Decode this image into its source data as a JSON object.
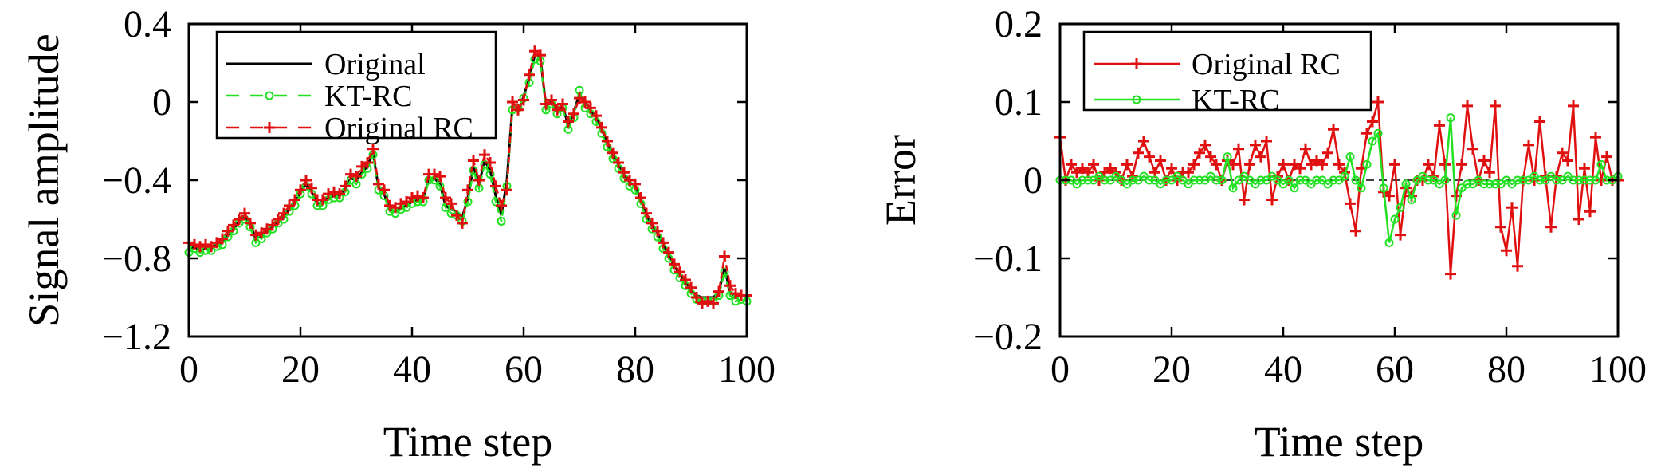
{
  "charts": [
    {
      "type": "line",
      "xlabel": "Time step",
      "ylabel": "Signal amplitude",
      "xlim": [
        0,
        100
      ],
      "ylim": [
        -1.2,
        0.4
      ],
      "xticks": [
        0,
        20,
        40,
        60,
        80,
        100
      ],
      "yticks": [
        0.4,
        0,
        -0.4,
        -0.8,
        -1.2
      ],
      "xtick_labels": [
        "0",
        "20",
        "40",
        "60",
        "80",
        "100"
      ],
      "ytick_labels": [
        "0.4",
        "0",
        "−0.4",
        "−0.8",
        "−1.2"
      ],
      "grid": false,
      "legend_position": "top-left",
      "series": [
        {
          "name": "Original",
          "color": "#000000",
          "style": "solid",
          "marker": "none",
          "values": [
            -0.75,
            -0.74,
            -0.76,
            -0.75,
            -0.75,
            -0.73,
            -0.72,
            -0.68,
            -0.65,
            -0.61,
            -0.59,
            -0.63,
            -0.7,
            -0.68,
            -0.66,
            -0.64,
            -0.61,
            -0.59,
            -0.55,
            -0.52,
            -0.46,
            -0.42,
            -0.46,
            -0.52,
            -0.51,
            -0.49,
            -0.48,
            -0.48,
            -0.45,
            -0.39,
            -0.4,
            -0.36,
            -0.33,
            -0.26,
            -0.44,
            -0.47,
            -0.55,
            -0.56,
            -0.54,
            -0.53,
            -0.51,
            -0.5,
            -0.5,
            -0.39,
            -0.39,
            -0.42,
            -0.53,
            -0.55,
            -0.56,
            -0.59,
            -0.49,
            -0.33,
            -0.42,
            -0.3,
            -0.35,
            -0.48,
            -0.58,
            -0.4,
            -0.02,
            -0.05,
            0.03,
            0.12,
            0.24,
            0.23,
            -0.02,
            0.0,
            -0.05,
            -0.02,
            -0.12,
            -0.05,
            0.04,
            0.0,
            -0.04,
            -0.08,
            -0.14,
            -0.21,
            -0.27,
            -0.32,
            -0.37,
            -0.41,
            -0.43,
            -0.5,
            -0.58,
            -0.63,
            -0.67,
            -0.73,
            -0.78,
            -0.84,
            -0.88,
            -0.92,
            -0.96,
            -0.99,
            -1.0,
            -1.0,
            -1.0,
            -0.97,
            -0.85,
            -0.97,
            -1.0,
            -0.99,
            -1.0
          ]
        },
        {
          "name": "KT-RC",
          "color": "#22e022",
          "style": "dashed",
          "marker": "circle",
          "values": [
            -0.77,
            -0.75,
            -0.77,
            -0.76,
            -0.76,
            -0.74,
            -0.73,
            -0.69,
            -0.66,
            -0.62,
            -0.6,
            -0.64,
            -0.72,
            -0.7,
            -0.67,
            -0.65,
            -0.62,
            -0.6,
            -0.56,
            -0.53,
            -0.47,
            -0.43,
            -0.47,
            -0.53,
            -0.53,
            -0.5,
            -0.49,
            -0.49,
            -0.46,
            -0.4,
            -0.42,
            -0.37,
            -0.34,
            -0.27,
            -0.45,
            -0.48,
            -0.56,
            -0.57,
            -0.55,
            -0.54,
            -0.52,
            -0.51,
            -0.51,
            -0.4,
            -0.4,
            -0.43,
            -0.54,
            -0.57,
            -0.58,
            -0.61,
            -0.51,
            -0.35,
            -0.44,
            -0.32,
            -0.37,
            -0.51,
            -0.61,
            -0.43,
            -0.04,
            -0.03,
            0.02,
            0.1,
            0.22,
            0.21,
            -0.04,
            -0.01,
            -0.06,
            -0.03,
            -0.14,
            -0.08,
            0.06,
            -0.03,
            -0.06,
            -0.1,
            -0.16,
            -0.23,
            -0.29,
            -0.34,
            -0.39,
            -0.43,
            -0.45,
            -0.52,
            -0.6,
            -0.65,
            -0.69,
            -0.75,
            -0.8,
            -0.86,
            -0.9,
            -0.94,
            -0.98,
            -1.01,
            -1.02,
            -1.02,
            -1.02,
            -0.99,
            -0.87,
            -0.99,
            -1.02,
            -1.01,
            -1.02
          ]
        },
        {
          "name": "Original RC",
          "color": "#e01010",
          "style": "dashed",
          "marker": "plus",
          "values": [
            -0.72,
            -0.73,
            -0.74,
            -0.73,
            -0.74,
            -0.72,
            -0.7,
            -0.66,
            -0.63,
            -0.6,
            -0.57,
            -0.62,
            -0.68,
            -0.67,
            -0.65,
            -0.63,
            -0.6,
            -0.57,
            -0.53,
            -0.5,
            -0.45,
            -0.4,
            -0.44,
            -0.5,
            -0.5,
            -0.47,
            -0.46,
            -0.47,
            -0.43,
            -0.37,
            -0.38,
            -0.33,
            -0.31,
            -0.24,
            -0.42,
            -0.45,
            -0.53,
            -0.54,
            -0.52,
            -0.51,
            -0.49,
            -0.48,
            -0.49,
            -0.37,
            -0.37,
            -0.38,
            -0.49,
            -0.52,
            -0.58,
            -0.62,
            -0.45,
            -0.3,
            -0.4,
            -0.27,
            -0.31,
            -0.43,
            -0.53,
            -0.45,
            0.0,
            -0.04,
            0.01,
            0.14,
            0.26,
            0.24,
            -0.01,
            0.01,
            -0.04,
            -0.01,
            -0.1,
            -0.06,
            0.02,
            0.0,
            -0.03,
            -0.07,
            -0.13,
            -0.2,
            -0.26,
            -0.31,
            -0.36,
            -0.4,
            -0.42,
            -0.49,
            -0.57,
            -0.62,
            -0.66,
            -0.72,
            -0.77,
            -0.83,
            -0.87,
            -0.91,
            -0.95,
            -1.0,
            -1.03,
            -1.02,
            -1.03,
            -0.97,
            -0.79,
            -0.94,
            -0.98,
            -0.99,
            -0.99
          ]
        }
      ],
      "legend_entries": [
        "Original",
        "KT-RC",
        "Original RC"
      ]
    },
    {
      "type": "line",
      "xlabel": "Time step",
      "ylabel": "Error",
      "xlim": [
        0,
        100
      ],
      "ylim": [
        -0.2,
        0.2
      ],
      "xticks": [
        0,
        20,
        40,
        60,
        80,
        100
      ],
      "yticks": [
        0.2,
        0.1,
        0,
        -0.1,
        -0.2
      ],
      "xtick_labels": [
        "0",
        "20",
        "40",
        "60",
        "80",
        "100"
      ],
      "ytick_labels": [
        "0.2",
        "0.1",
        "0",
        "−0.1",
        "−0.2"
      ],
      "grid": false,
      "legend_position": "top-left",
      "zero_line": true,
      "series": [
        {
          "name": "Original RC",
          "color": "#e01010",
          "style": "solid",
          "marker": "plus",
          "values": [
            0.055,
            0.0,
            0.02,
            0.01,
            0.015,
            0.01,
            0.02,
            0.0,
            0.01,
            0.015,
            0.01,
            0.0,
            0.02,
            0.005,
            0.035,
            0.05,
            0.03,
            0.01,
            0.025,
            0.0,
            0.015,
            0.0,
            0.01,
            0.01,
            0.02,
            0.035,
            0.045,
            0.03,
            0.02,
            0.0,
            0.025,
            0.02,
            0.04,
            -0.025,
            0.02,
            0.045,
            0.03,
            0.05,
            -0.025,
            0.005,
            0.02,
            0.0,
            0.02,
            0.015,
            0.04,
            0.02,
            0.025,
            0.02,
            0.035,
            0.065,
            0.02,
            0.01,
            -0.03,
            -0.065,
            0.015,
            0.06,
            0.075,
            0.1,
            -0.015,
            -0.02,
            0.02,
            -0.07,
            -0.01,
            -0.02,
            0.0,
            0.0,
            0.02,
            0.005,
            0.07,
            0.02,
            -0.12,
            -0.02,
            0.02,
            0.095,
            0.04,
            0.0,
            0.025,
            0.01,
            0.095,
            -0.06,
            -0.09,
            -0.035,
            -0.11,
            0.0,
            0.045,
            0.0,
            0.075,
            0.005,
            -0.06,
            0.005,
            0.035,
            0.025,
            0.095,
            -0.05,
            0.015,
            -0.04,
            0.055,
            0.0,
            0.03,
            0.0,
            0.0
          ]
        },
        {
          "name": "KT-RC",
          "color": "#22e022",
          "style": "solid",
          "marker": "circle",
          "values": [
            0.0,
            0.0,
            0.0,
            -0.005,
            0.0,
            0.0,
            0.0,
            0.005,
            0.0,
            0.0,
            0.005,
            0.0,
            -0.005,
            0.0,
            0.0,
            0.005,
            0.0,
            0.0,
            -0.005,
            0.0,
            0.0,
            0.005,
            0.0,
            -0.005,
            0.0,
            0.0,
            0.0,
            0.005,
            0.0,
            0.0,
            0.03,
            -0.01,
            0.0,
            0.005,
            0.0,
            -0.005,
            0.0,
            0.0,
            0.005,
            0.0,
            -0.005,
            0.0,
            -0.01,
            0.0,
            0.0,
            -0.005,
            0.0,
            0.0,
            -0.005,
            0.0,
            0.0,
            0.005,
            0.03,
            0.0,
            -0.01,
            0.02,
            0.05,
            0.06,
            -0.01,
            -0.08,
            -0.05,
            -0.035,
            -0.005,
            -0.025,
            0.0,
            0.005,
            0.0,
            0.0,
            -0.005,
            0.0,
            0.08,
            -0.045,
            -0.01,
            -0.005,
            -0.005,
            0.0,
            -0.005,
            -0.005,
            -0.005,
            -0.005,
            0.0,
            -0.005,
            0.0,
            0.0,
            0.0,
            0.005,
            0.0,
            0.0,
            0.005,
            0.0,
            0.0,
            0.005,
            0.0,
            0.0,
            0.0,
            0.0,
            0.0,
            0.02,
            0.0,
            0.0,
            0.005
          ]
        }
      ],
      "legend_entries": [
        "Original RC",
        "KT-RC"
      ]
    }
  ]
}
